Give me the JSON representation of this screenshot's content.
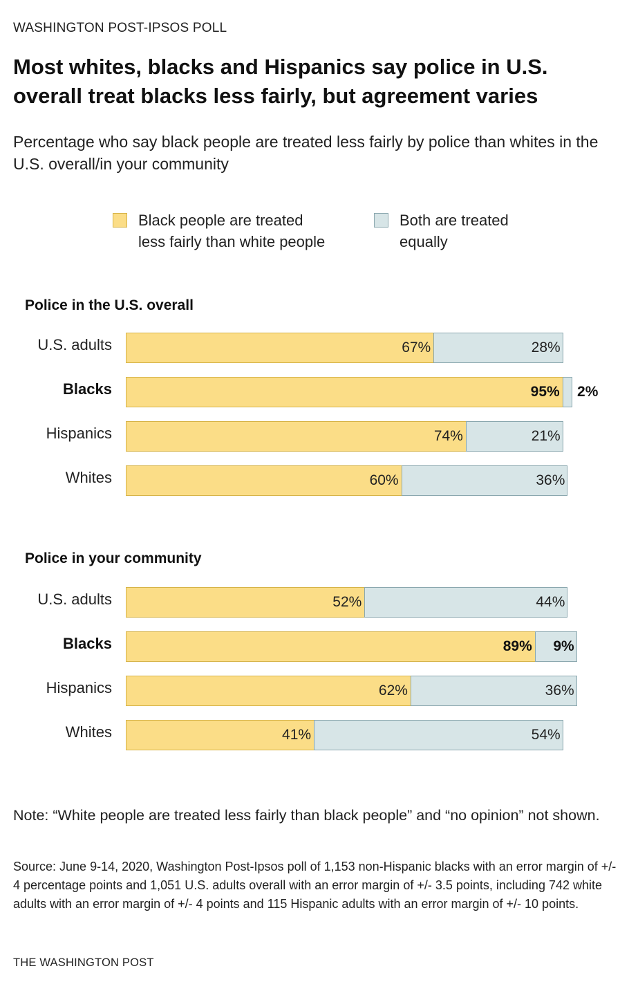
{
  "header": {
    "kicker": "WASHINGTON POST-IPSOS POLL",
    "title": "Most whites, blacks and Hispanics say police in U.S. overall treat blacks less fairly, but agreement varies",
    "subtitle": "Percentage who say black people are treated less fairly by police than whites in the U.S. overall/in your community"
  },
  "legend": {
    "less_fairly": "Black people are treated\nless fairly than white people",
    "equally": "Both are treated\nequally"
  },
  "colors": {
    "less_fairly": "#fbdd87",
    "less_fairly_border": "#d6b347",
    "equally": "#d7e5e7",
    "equally_border": "#8aa7ae"
  },
  "chart_data": [
    {
      "type": "bar",
      "title": "Police in the U.S. overall",
      "categories": [
        "U.S. adults",
        "Blacks",
        "Hispanics",
        "Whites"
      ],
      "emphasized_category": "Blacks",
      "xlim": [
        0,
        100
      ],
      "series": [
        {
          "name": "Black people are treated less fairly than white people",
          "values": [
            67,
            95,
            74,
            60
          ]
        },
        {
          "name": "Both are treated equally",
          "values": [
            28,
            2,
            21,
            36
          ]
        }
      ]
    },
    {
      "type": "bar",
      "title": "Police in your community",
      "categories": [
        "U.S. adults",
        "Blacks",
        "Hispanics",
        "Whites"
      ],
      "emphasized_category": "Blacks",
      "xlim": [
        0,
        100
      ],
      "series": [
        {
          "name": "Black people are treated less fairly than white people",
          "values": [
            52,
            89,
            62,
            41
          ]
        },
        {
          "name": "Both are treated equally",
          "values": [
            44,
            9,
            36,
            54
          ]
        }
      ]
    }
  ],
  "footer": {
    "note": "Note: “White people are treated less fairly than black people” and “no opinion” not shown.",
    "source": "Source: June 9-14, 2020, Washington Post-Ipsos poll of 1,153 non-Hispanic blacks with an error margin of +/- 4 percentage points and 1,051 U.S. adults overall with an error margin of +/- 3.5 points, including  742 white adults with an error margin of +/- 4 points and 115 Hispanic adults with an error margin of +/- 10 points.",
    "credit": "THE WASHINGTON POST"
  }
}
